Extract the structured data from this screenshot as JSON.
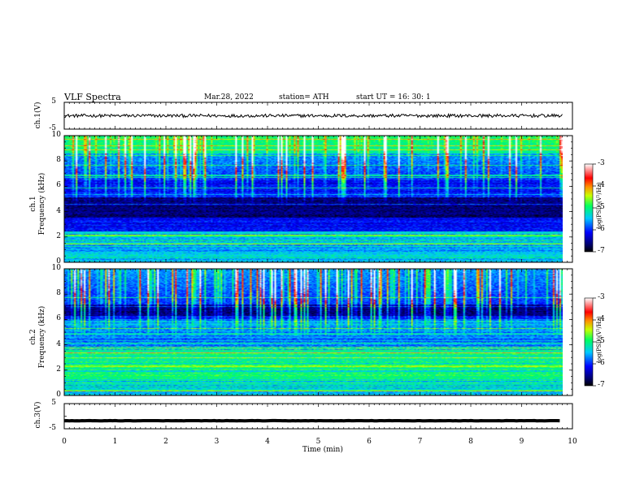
{
  "header": {
    "title": "VLF  Spectra",
    "date": "Mar.28, 2022",
    "station": "station= ATH",
    "start_ut": "start  UT  =    16: 30: 1"
  },
  "chart_data": [
    {
      "type": "line",
      "name": "ch1-waveform",
      "ylabel": "ch.1(V)",
      "ylim": [
        -5,
        5
      ],
      "yticks": [
        "5",
        "-5"
      ],
      "xlim": [
        0,
        10
      ],
      "x_end": 9.8,
      "level": 0.0,
      "noise_amplitude": 0.6
    },
    {
      "type": "heatmap",
      "name": "ch1-spectrogram",
      "ylabel": "ch.1\nFrequency  (kHz)",
      "ylim": [
        0,
        10
      ],
      "yticks": [
        "0",
        "2",
        "4",
        "6",
        "8",
        "10"
      ],
      "xlim": [
        0,
        10
      ],
      "x_end": 9.8,
      "colorbar": {
        "label": "log(PSD)(V²/Hz)",
        "range": [
          -7,
          -3
        ],
        "ticks": [
          "-3",
          "-4",
          "-5",
          "-6",
          "-7"
        ]
      },
      "dark_band_khz": [
        3.5,
        5.2
      ],
      "bright_band_khz": [
        0.0,
        2.4
      ],
      "spike_rate_top_khz": [
        6.5,
        10
      ]
    },
    {
      "type": "heatmap",
      "name": "ch2-spectrogram",
      "ylabel": "ch.2\nFrequency  (kHz)",
      "ylim": [
        0,
        10
      ],
      "yticks": [
        "0",
        "2",
        "4",
        "6",
        "8",
        "10"
      ],
      "xlim": [
        0,
        10
      ],
      "x_end": 9.8,
      "colorbar": {
        "label": "log(PSD)(V²/Hz)",
        "range": [
          -7,
          -3
        ],
        "ticks": [
          "-3",
          "-4",
          "-5",
          "-6",
          "-7"
        ]
      },
      "dark_band_khz": [
        6.3,
        7.2
      ],
      "bright_band_khz": [
        1.3,
        3.5
      ],
      "spike_rate_top_khz": [
        6.0,
        10
      ]
    },
    {
      "type": "line",
      "name": "ch3-waveform",
      "ylabel": "ch.3(V)",
      "ylim": [
        -5,
        5
      ],
      "yticks": [
        "5",
        "-5"
      ],
      "xlim": [
        0,
        10
      ],
      "x_end": 9.8,
      "level": -1.8,
      "noise_amplitude": 0.05
    }
  ],
  "x_axis": {
    "label": "Time  (min)",
    "ticks": [
      "0",
      "1",
      "2",
      "3",
      "4",
      "5",
      "6",
      "7",
      "8",
      "9",
      "10"
    ]
  }
}
